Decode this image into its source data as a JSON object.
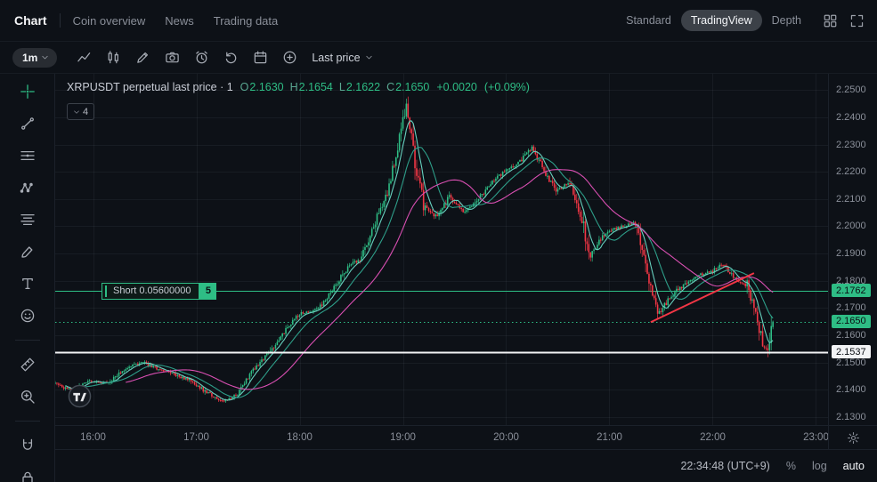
{
  "top_nav": {
    "tabs": [
      {
        "label": "Chart",
        "active": true
      },
      {
        "label": "Coin overview",
        "active": false
      },
      {
        "label": "News",
        "active": false
      },
      {
        "label": "Trading data",
        "active": false
      }
    ],
    "view_modes": [
      {
        "label": "Standard",
        "active": false
      },
      {
        "label": "TradingView",
        "active": true
      },
      {
        "label": "Depth",
        "active": false
      }
    ],
    "icons": [
      "layout-grid",
      "fullscreen"
    ]
  },
  "toolbar": {
    "interval": "1m",
    "icons": [
      "line-chart",
      "candles",
      "draw",
      "camera",
      "alarm",
      "replay",
      "calendar",
      "plus-circle"
    ],
    "price_source": "Last price"
  },
  "left_toolbar": {
    "active_tool": "crosshair",
    "tools": [
      "crosshair",
      "trend-line",
      "horizontal-lines",
      "xabcd-pattern",
      "fib-retracement",
      "brush",
      "text-tool",
      "emoji",
      "measure",
      "zoom-in",
      "magnet",
      "lock"
    ]
  },
  "chart": {
    "header": {
      "title": "XRPUSDT perpetual last price · 1",
      "ohlc": [
        {
          "k": "O",
          "v": "2.1630"
        },
        {
          "k": "H",
          "v": "2.1654"
        },
        {
          "k": "L",
          "v": "2.1622"
        },
        {
          "k": "C",
          "v": "2.1650"
        }
      ],
      "change": "+0.0020",
      "change_pct": "(+0.09%)"
    },
    "indicator_box": {
      "count": "4"
    },
    "position_tag": {
      "label": "Short 0.05600000",
      "badge": "5"
    },
    "axis_labels": {
      "price_ticks": [
        "2.2500",
        "2.2400",
        "2.2300",
        "2.2200",
        "2.2100",
        "2.2000",
        "2.1900",
        "2.1800",
        "2.1700",
        "2.1600",
        "2.1500",
        "2.1400",
        "2.1300"
      ],
      "time_ticks": [
        {
          "t": 0,
          "label": "16:00"
        },
        {
          "t": 60,
          "label": "17:00"
        },
        {
          "t": 120,
          "label": "18:00"
        },
        {
          "t": 180,
          "label": "19:00"
        },
        {
          "t": 240,
          "label": "20:00"
        },
        {
          "t": 300,
          "label": "21:00"
        },
        {
          "t": 360,
          "label": "22:00"
        },
        {
          "t": 420,
          "label": "23:00"
        }
      ],
      "special": [
        {
          "price": 2.1762,
          "label": "2.1762",
          "bg": "#2ebd85",
          "fg": "#0b0f14"
        },
        {
          "price": 2.165,
          "label": "2.1650",
          "bg": "#2ebd85",
          "fg": "#0b0f14"
        },
        {
          "price": 2.1537,
          "label": "2.1537",
          "bg": "#f2f3f5",
          "fg": "#0b0f14"
        }
      ]
    }
  },
  "chart_data": {
    "type": "candlestick",
    "symbol": "XRPUSDT",
    "interval": "1m",
    "scale": {
      "t_min": -22,
      "t_max": 427,
      "price_min": 2.127,
      "price_max": 2.256
    },
    "t_data_end": 395,
    "seed": 11,
    "anchors": [
      [
        -22,
        2.1425
      ],
      [
        -14,
        2.1398
      ],
      [
        -2,
        2.143
      ],
      [
        8,
        2.1425
      ],
      [
        21,
        2.1487
      ],
      [
        29,
        2.15
      ],
      [
        37,
        2.1478
      ],
      [
        47,
        2.1458
      ],
      [
        57,
        2.1432
      ],
      [
        65,
        2.1395
      ],
      [
        76,
        2.1355
      ],
      [
        83,
        2.1378
      ],
      [
        91,
        2.1458
      ],
      [
        101,
        2.1525
      ],
      [
        112,
        2.162
      ],
      [
        120,
        2.168
      ],
      [
        130,
        2.1695
      ],
      [
        138,
        2.1755
      ],
      [
        148,
        2.185
      ],
      [
        156,
        2.1885
      ],
      [
        163,
        2.2
      ],
      [
        171,
        2.213
      ],
      [
        178,
        2.232
      ],
      [
        182,
        2.244
      ],
      [
        187,
        2.224
      ],
      [
        192,
        2.208
      ],
      [
        200,
        2.203
      ],
      [
        207,
        2.211
      ],
      [
        215,
        2.205
      ],
      [
        223,
        2.2095
      ],
      [
        231,
        2.216
      ],
      [
        238,
        2.2195
      ],
      [
        246,
        2.2225
      ],
      [
        255,
        2.229
      ],
      [
        263,
        2.2195
      ],
      [
        269,
        2.213
      ],
      [
        277,
        2.216
      ],
      [
        285,
        2.2
      ],
      [
        288,
        2.1885
      ],
      [
        294,
        2.195
      ],
      [
        300,
        2.1985
      ],
      [
        308,
        2.2
      ],
      [
        316,
        2.2015
      ],
      [
        321,
        2.185
      ],
      [
        328,
        2.1672
      ],
      [
        337,
        2.1754
      ],
      [
        344,
        2.1787
      ],
      [
        352,
        2.182
      ],
      [
        360,
        2.1836
      ],
      [
        366,
        2.1865
      ],
      [
        373,
        2.1803
      ],
      [
        380,
        2.1787
      ],
      [
        385,
        2.1672
      ],
      [
        389,
        2.1574
      ],
      [
        392,
        2.1535
      ],
      [
        395,
        2.165
      ]
    ],
    "last_candle": {
      "o": 2.163,
      "h": 2.1654,
      "l": 2.1622,
      "c": 2.165
    },
    "levels": [
      {
        "price": 2.1762,
        "style": "solid",
        "color": "#2ebd85",
        "width": 1,
        "name": "entry-line"
      },
      {
        "price": 2.165,
        "style": "dotted",
        "color": "#2ebd85",
        "width": 1,
        "name": "last-price-line"
      },
      {
        "price": 2.1537,
        "style": "solid",
        "color": "#f2f3f5",
        "width": 2,
        "name": "white-line"
      }
    ],
    "trendline": {
      "t1": 324,
      "p1": 2.1648,
      "t2": 384,
      "p2": 2.1828,
      "color": "#f23645",
      "width": 2
    },
    "ma": [
      {
        "period": 7,
        "color": "#67d1bf"
      },
      {
        "period": 18,
        "color": "#2e9e89"
      },
      {
        "period": 42,
        "color": "#d94fb2"
      }
    ],
    "colors": {
      "up": "#2ebd85",
      "down": "#f23645",
      "grid": "rgba(151,161,180,0.08)"
    }
  },
  "bottom_bar": {
    "clock": "22:34:48 (UTC+9)",
    "buttons": [
      {
        "label": "%",
        "active": false
      },
      {
        "label": "log",
        "active": false
      },
      {
        "label": "auto",
        "active": true
      }
    ]
  }
}
